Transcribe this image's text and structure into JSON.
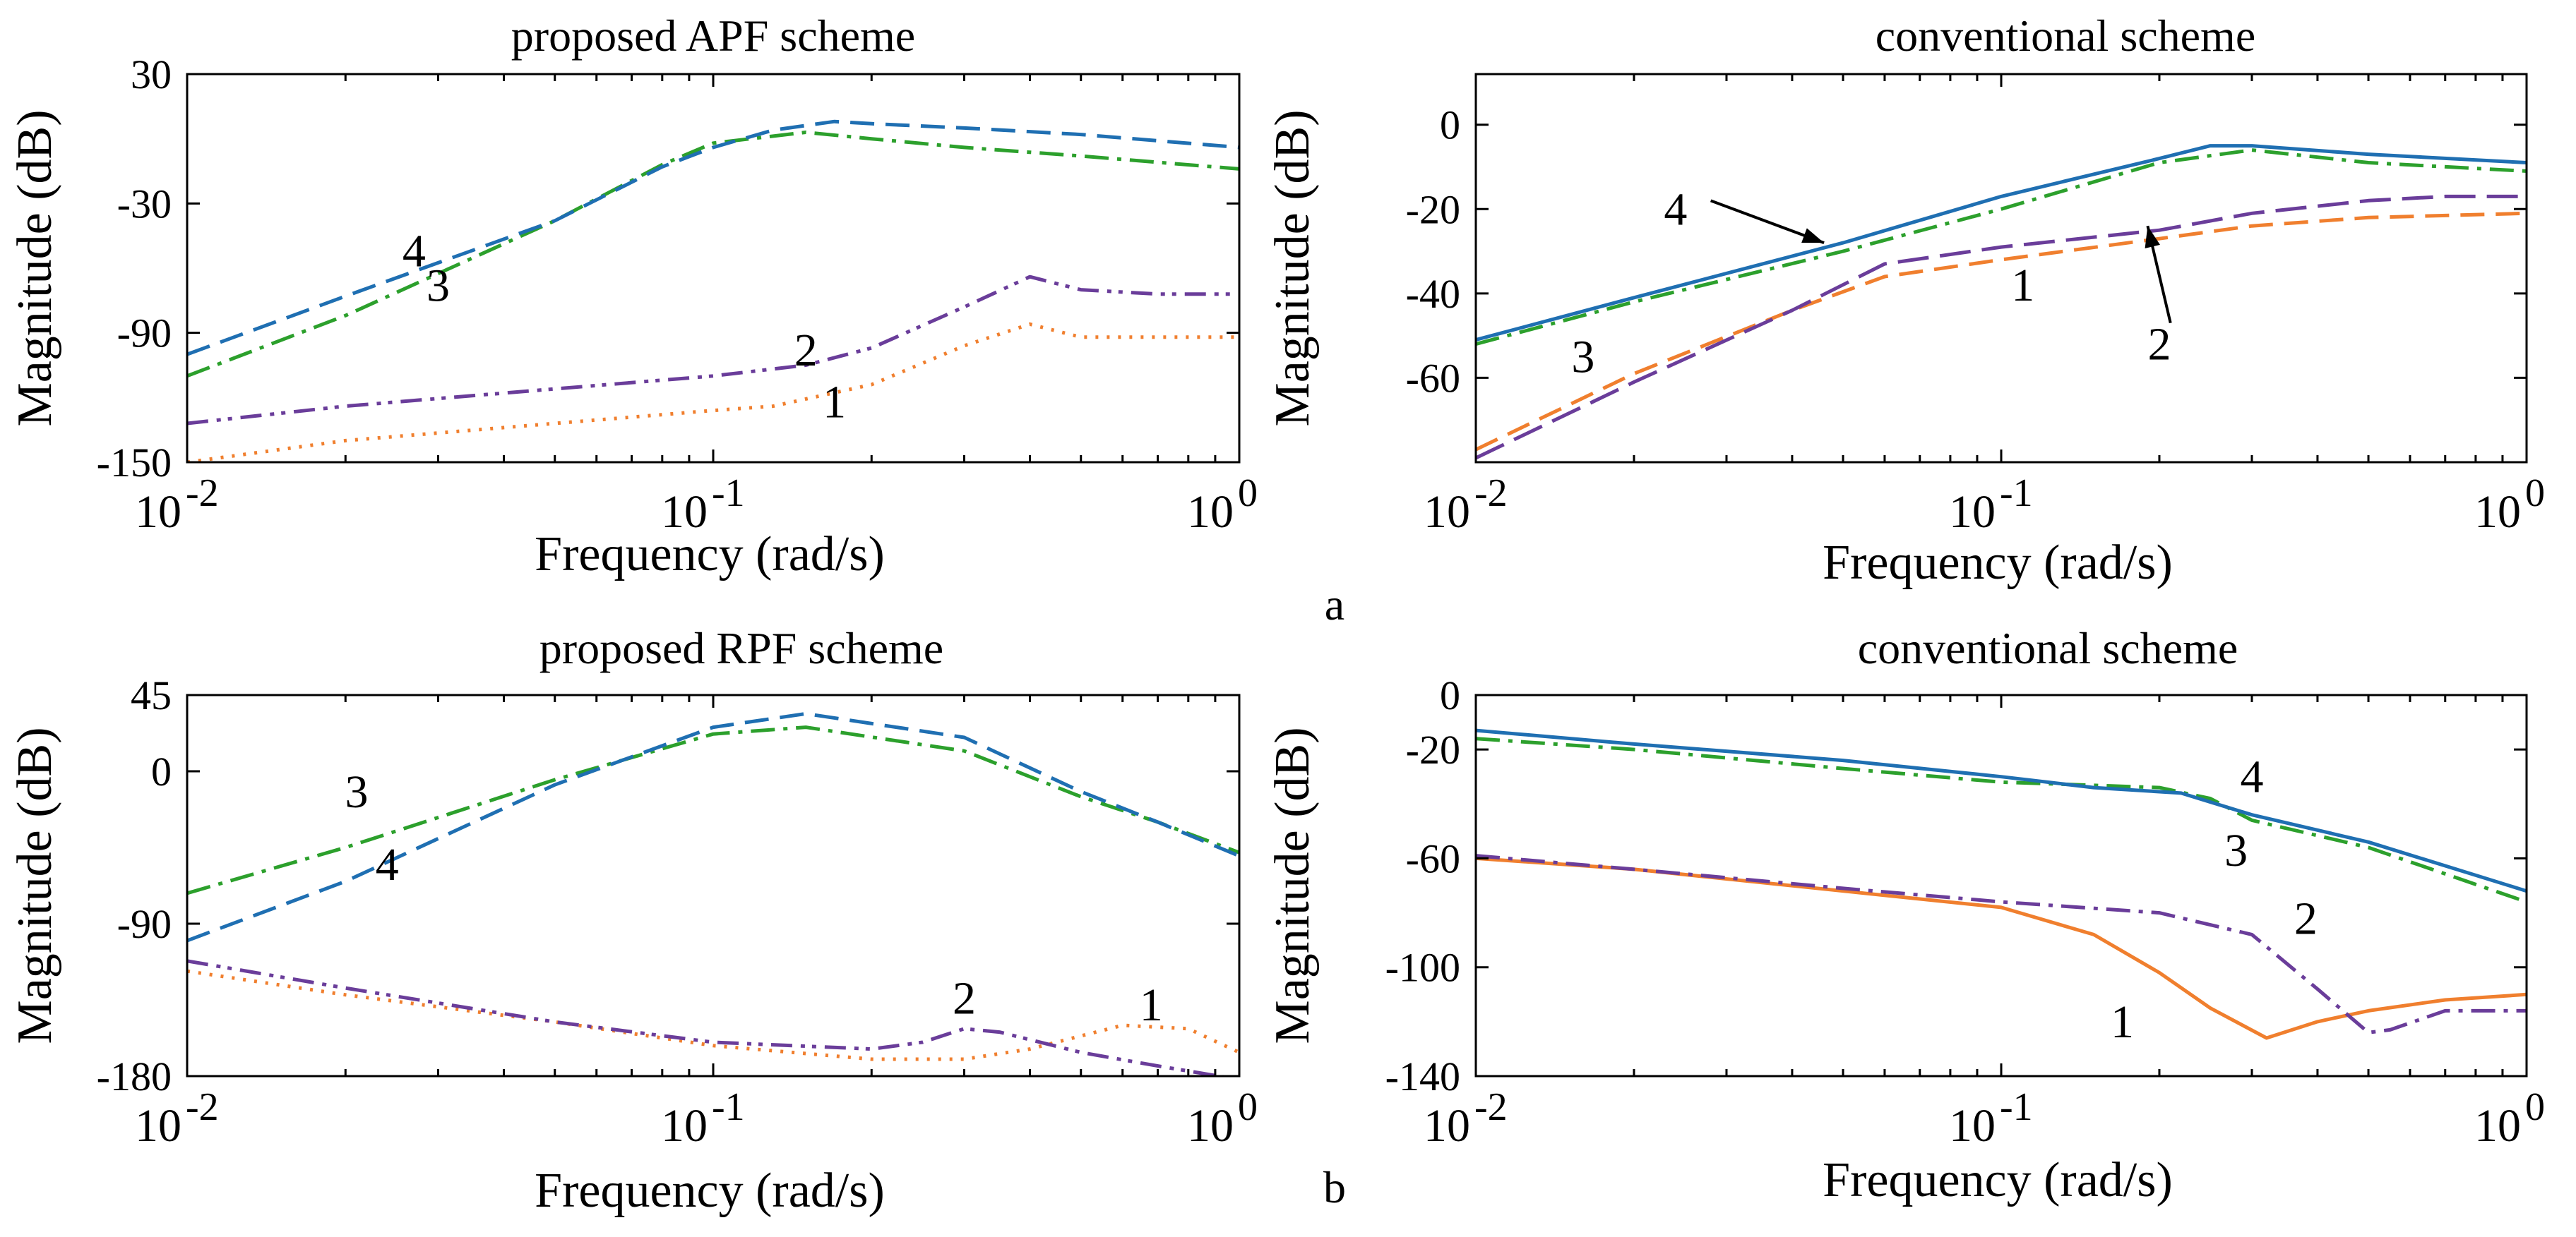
{
  "figure_labels": [
    "a",
    "b"
  ],
  "chart_data": [
    {
      "id": "a-left",
      "type": "line",
      "title": "proposed APF scheme",
      "xlabel": "Frequency  (rad/s)",
      "ylabel": "Magnitude (dB)",
      "xscale": "log",
      "xlim": [
        0.01,
        1
      ],
      "ylim": [
        -150,
        30
      ],
      "yticks": [
        "30",
        "-30",
        "-90",
        "-150"
      ],
      "ytick_values": [
        30,
        -30,
        -90,
        -150
      ],
      "xtick_base": [
        "10",
        "10",
        "10"
      ],
      "xtick_exp": [
        "-2",
        "-1",
        "0"
      ],
      "xtick_values": [
        0.01,
        0.1,
        1
      ],
      "grid": false,
      "series": [
        {
          "name": "1",
          "color": "#f07f2e",
          "dash": "dotted",
          "x": [
            0.01,
            0.02,
            0.05,
            0.1,
            0.13,
            0.2,
            0.3,
            0.4,
            0.5,
            0.7,
            1
          ],
          "y": [
            -150,
            -140,
            -132,
            -126,
            -124,
            -114,
            -96,
            -86,
            -92,
            -92,
            -92
          ]
        },
        {
          "name": "2",
          "color": "#6a3d9a",
          "dash": "dashdotdot",
          "x": [
            0.01,
            0.02,
            0.05,
            0.1,
            0.15,
            0.2,
            0.3,
            0.4,
            0.5,
            0.7,
            1
          ],
          "y": [
            -132,
            -124,
            -116,
            -110,
            -105,
            -97,
            -78,
            -64,
            -70,
            -72,
            -72
          ]
        },
        {
          "name": "3",
          "color": "#2ca02c",
          "dash": "dashdot",
          "x": [
            0.01,
            0.02,
            0.05,
            0.08,
            0.1,
            0.15,
            0.2,
            0.3,
            0.5,
            1
          ],
          "y": [
            -110,
            -82,
            -38,
            -12,
            -2,
            3,
            0,
            -4,
            -8,
            -14
          ]
        },
        {
          "name": "4",
          "color": "#1f6fb2",
          "dash": "dashed",
          "x": [
            0.01,
            0.02,
            0.05,
            0.08,
            0.1,
            0.13,
            0.17,
            0.2,
            0.3,
            0.5,
            1
          ],
          "y": [
            -100,
            -73,
            -38,
            -13,
            -4,
            4,
            8,
            7,
            5,
            2,
            -4
          ]
        }
      ],
      "annotations": [
        {
          "text": "1",
          "x": 0.17,
          "y": -122
        },
        {
          "text": "2",
          "x": 0.15,
          "y": -98
        },
        {
          "text": "3",
          "x": 0.03,
          "y": -68
        },
        {
          "text": "4",
          "x": 0.027,
          "y": -52
        }
      ]
    },
    {
      "id": "a-right",
      "type": "line",
      "title": "conventional scheme",
      "xlabel": "Frequency  (rad/s)",
      "ylabel": "Magnitude (dB)",
      "xscale": "log",
      "xlim": [
        0.01,
        1
      ],
      "ylim": [
        -80,
        12
      ],
      "yticks": [
        "0",
        "-20",
        "-40",
        "-60"
      ],
      "ytick_values": [
        0,
        -20,
        -40,
        -60
      ],
      "xtick_base": [
        "10",
        "10",
        "10"
      ],
      "xtick_exp": [
        "-2",
        "-1",
        "0"
      ],
      "xtick_values": [
        0.01,
        0.1,
        1
      ],
      "grid": false,
      "series": [
        {
          "name": "1",
          "color": "#f07f2e",
          "dash": "dashed",
          "x": [
            0.01,
            0.02,
            0.04,
            0.06,
            0.1,
            0.2,
            0.3,
            0.5,
            1
          ],
          "y": [
            -77,
            -59,
            -44,
            -36,
            -32,
            -27,
            -24,
            -22,
            -21
          ]
        },
        {
          "name": "2",
          "color": "#6a3d9a",
          "dash": "longdash",
          "x": [
            0.01,
            0.02,
            0.04,
            0.06,
            0.1,
            0.2,
            0.3,
            0.5,
            0.7,
            1
          ],
          "y": [
            -79,
            -61,
            -44,
            -33,
            -29,
            -25,
            -21,
            -18,
            -17,
            -17
          ]
        },
        {
          "name": "3",
          "color": "#2ca02c",
          "dash": "dashdot",
          "x": [
            0.01,
            0.02,
            0.05,
            0.1,
            0.2,
            0.3,
            0.5,
            1
          ],
          "y": [
            -52,
            -42,
            -30,
            -20,
            -9,
            -6,
            -9,
            -11
          ]
        },
        {
          "name": "4",
          "color": "#1f6fb2",
          "dash": "solid",
          "x": [
            0.01,
            0.02,
            0.05,
            0.1,
            0.2,
            0.25,
            0.3,
            0.5,
            1
          ],
          "y": [
            -51,
            -41,
            -28,
            -17,
            -8,
            -5,
            -5,
            -7,
            -9
          ]
        }
      ],
      "annotations": [
        {
          "text": "1",
          "x": 0.11,
          "y": -38
        },
        {
          "text": "2",
          "x": 0.2,
          "y": -52
        },
        {
          "text": "3",
          "x": 0.016,
          "y": -55
        },
        {
          "text": "4",
          "x": 0.024,
          "y": -20
        }
      ],
      "arrows": [
        {
          "label": "4",
          "from": [
            0.028,
            -18
          ],
          "to": [
            0.046,
            -28
          ]
        },
        {
          "label": "2",
          "from": [
            0.21,
            -47
          ],
          "to": [
            0.19,
            -24
          ]
        }
      ]
    },
    {
      "id": "b-left",
      "type": "line",
      "title": "proposed RPF scheme",
      "xlabel": "Frequency  (rad/s)",
      "ylabel": "Magnitude (dB)",
      "xscale": "log",
      "xlim": [
        0.01,
        1
      ],
      "ylim": [
        -180,
        45
      ],
      "yticks": [
        "45",
        "0",
        "-90",
        "-180"
      ],
      "ytick_values": [
        45,
        0,
        -90,
        -180
      ],
      "xtick_base": [
        "10",
        "10",
        "10"
      ],
      "xtick_exp": [
        "-2",
        "-1",
        "0"
      ],
      "xtick_values": [
        0.01,
        0.1,
        1
      ],
      "grid": false,
      "series": [
        {
          "name": "1",
          "color": "#f07f2e",
          "dash": "dotted",
          "x": [
            0.01,
            0.02,
            0.05,
            0.1,
            0.2,
            0.3,
            0.4,
            0.6,
            0.8,
            1
          ],
          "y": [
            -118,
            -132,
            -148,
            -162,
            -170,
            -170,
            -164,
            -150,
            -152,
            -166
          ]
        },
        {
          "name": "2",
          "color": "#6a3d9a",
          "dash": "dashdotdot",
          "x": [
            0.01,
            0.02,
            0.05,
            0.1,
            0.2,
            0.25,
            0.3,
            0.35,
            0.5,
            0.7,
            1
          ],
          "y": [
            -112,
            -128,
            -148,
            -160,
            -164,
            -160,
            -152,
            -154,
            -166,
            -174,
            -182
          ]
        },
        {
          "name": "3",
          "color": "#2ca02c",
          "dash": "dashdot",
          "x": [
            0.01,
            0.02,
            0.05,
            0.1,
            0.15,
            0.3,
            0.5,
            0.7,
            1
          ],
          "y": [
            -72,
            -45,
            -5,
            22,
            26,
            12,
            -15,
            -30,
            -48
          ]
        },
        {
          "name": "4",
          "color": "#1f6fb2",
          "dash": "dashed",
          "x": [
            0.01,
            0.02,
            0.05,
            0.1,
            0.15,
            0.3,
            0.5,
            0.7,
            1
          ],
          "y": [
            -100,
            -65,
            -8,
            26,
            34,
            20,
            -12,
            -30,
            -50
          ]
        }
      ],
      "annotations": [
        {
          "text": "1",
          "x": 0.68,
          "y": -138
        },
        {
          "text": "2",
          "x": 0.3,
          "y": -134
        },
        {
          "text": "3",
          "x": 0.021,
          "y": -12
        },
        {
          "text": "4",
          "x": 0.024,
          "y": -55
        }
      ]
    },
    {
      "id": "b-right",
      "type": "line",
      "title": "conventional scheme",
      "xlabel": "Frequency  (rad/s)",
      "ylabel": "Magnitude (dB)",
      "xscale": "log",
      "xlim": [
        0.01,
        1
      ],
      "ylim": [
        -140,
        0
      ],
      "yticks": [
        "0",
        "-20",
        "-60",
        "-100",
        "-140"
      ],
      "ytick_values": [
        0,
        -20,
        -60,
        -100,
        -140
      ],
      "xtick_base": [
        "10",
        "10",
        "10"
      ],
      "xtick_exp": [
        "-2",
        "-1",
        "0"
      ],
      "xtick_values": [
        0.01,
        0.1,
        1
      ],
      "grid": false,
      "series": [
        {
          "name": "1",
          "color": "#f07f2e",
          "dash": "solid",
          "x": [
            0.01,
            0.02,
            0.05,
            0.1,
            0.15,
            0.2,
            0.25,
            0.32,
            0.4,
            0.5,
            0.7,
            1
          ],
          "y": [
            -60,
            -64,
            -72,
            -78,
            -88,
            -102,
            -115,
            -126,
            -120,
            -116,
            -112,
            -110
          ]
        },
        {
          "name": "2",
          "color": "#6a3d9a",
          "dash": "dashdot",
          "x": [
            0.01,
            0.02,
            0.05,
            0.1,
            0.2,
            0.3,
            0.4,
            0.5,
            0.55,
            0.7,
            1
          ],
          "y": [
            -59,
            -64,
            -71,
            -76,
            -80,
            -88,
            -108,
            -124,
            -123,
            -116,
            -116
          ]
        },
        {
          "name": "3",
          "color": "#2ca02c",
          "dash": "dashdot",
          "x": [
            0.01,
            0.02,
            0.05,
            0.1,
            0.2,
            0.25,
            0.3,
            0.5,
            1
          ],
          "y": [
            -16,
            -20,
            -27,
            -32,
            -34,
            -38,
            -46,
            -56,
            -76
          ]
        },
        {
          "name": "4",
          "color": "#1f6fb2",
          "dash": "solid",
          "x": [
            0.01,
            0.02,
            0.05,
            0.1,
            0.15,
            0.22,
            0.3,
            0.5,
            1
          ],
          "y": [
            -13,
            -18,
            -24,
            -30,
            -34,
            -36,
            -44,
            -54,
            -72
          ]
        }
      ],
      "annotations": [
        {
          "text": "1",
          "x": 0.17,
          "y": -120
        },
        {
          "text": "2",
          "x": 0.38,
          "y": -82
        },
        {
          "text": "3",
          "x": 0.28,
          "y": -57
        },
        {
          "text": "4",
          "x": 0.3,
          "y": -30
        }
      ]
    }
  ]
}
